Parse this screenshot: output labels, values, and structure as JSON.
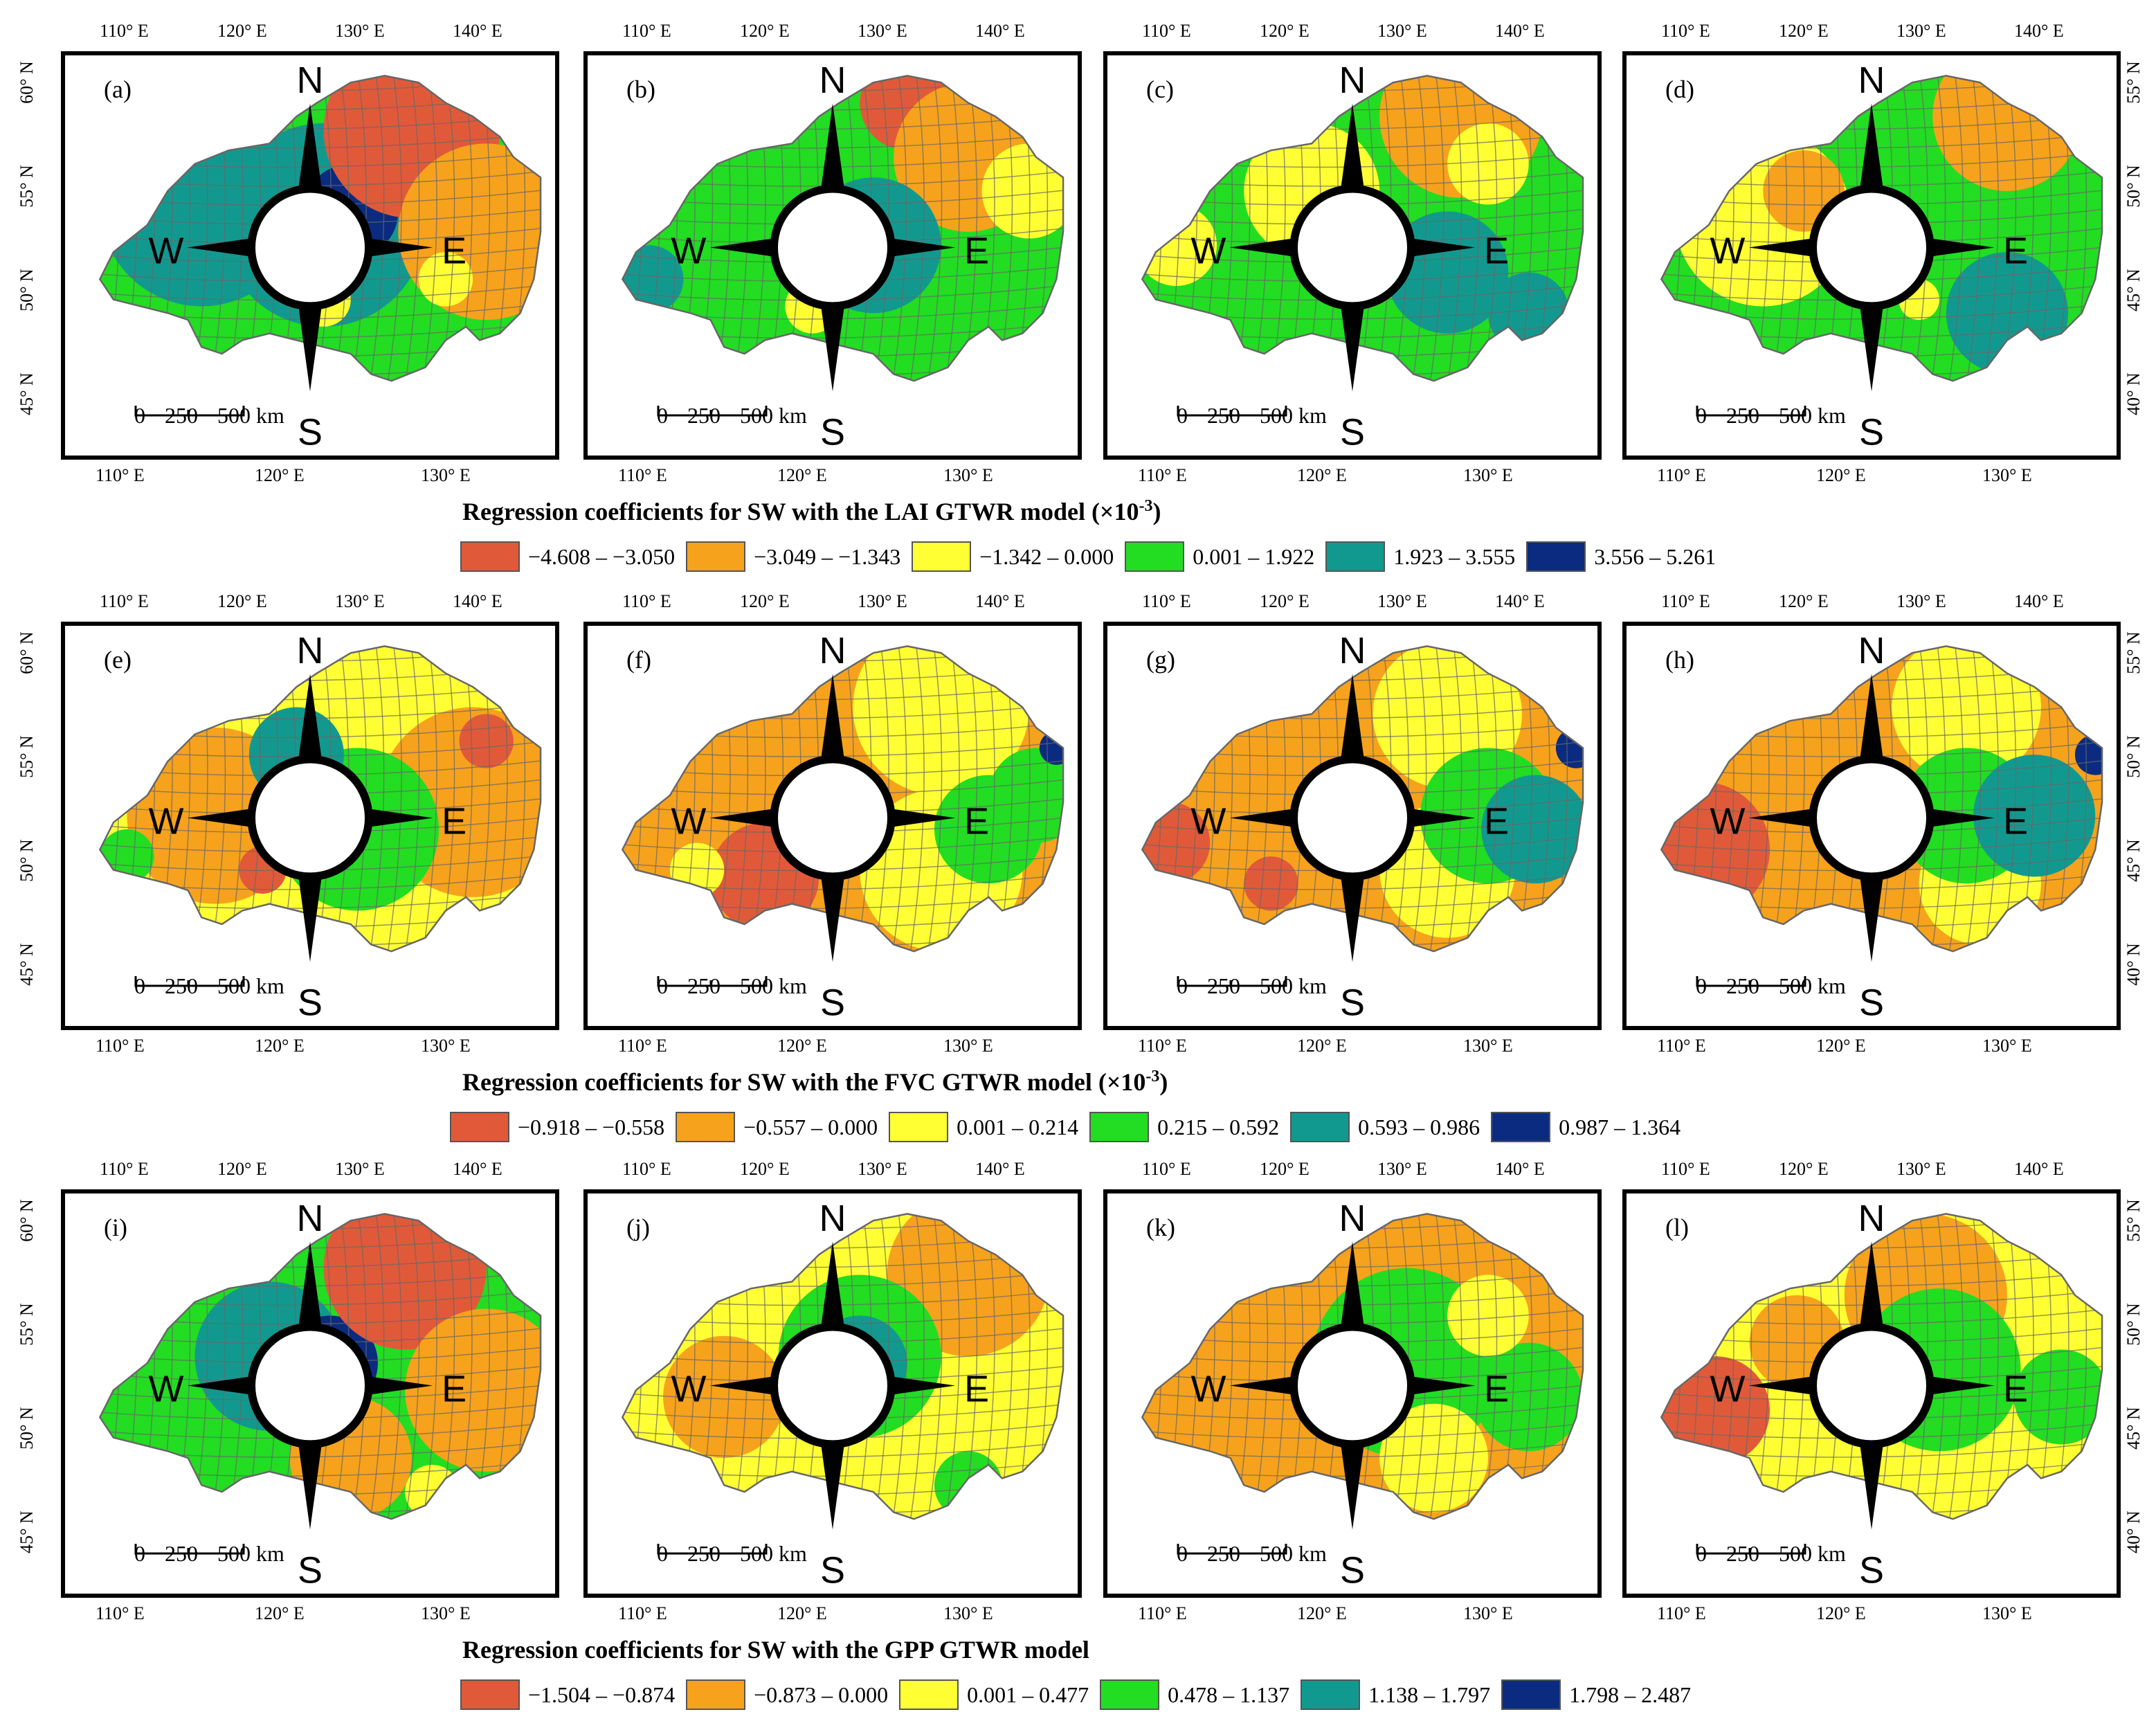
{
  "axes": {
    "lon_top": [
      "110° E",
      "120° E",
      "130° E",
      "140° E"
    ],
    "lon_bottom": [
      "110° E",
      "120° E",
      "130° E"
    ],
    "lat_left": [
      "60° N",
      "55° N",
      "50° N",
      "45° N"
    ],
    "lat_right": [
      "55° N",
      "50° N",
      "45° N",
      "40° N"
    ]
  },
  "compass": {
    "n": "N",
    "s": "S",
    "e": "E",
    "w": "W"
  },
  "scale": {
    "zero": "0",
    "mid": "250",
    "end": "500 km"
  },
  "rows": [
    {
      "title": "Regression coefficients for SW with the LAI GTWR model (×10",
      "title_sup": "-3",
      "title_close": ")",
      "panels": [
        "(a)",
        "(b)",
        "(c)",
        "(d)"
      ],
      "legend": [
        {
          "label": "−4.608 – −3.050",
          "color": "#e05a3a"
        },
        {
          "label": "−3.049 – −1.343",
          "color": "#f7a21c"
        },
        {
          "label": "−1.342 – 0.000",
          "color": "#ffff33"
        },
        {
          "label": "0.001 – 1.922",
          "color": "#22dd22"
        },
        {
          "label": "1.923 – 3.555",
          "color": "#12998f"
        },
        {
          "label": "3.556 – 5.261",
          "color": "#0a2b80"
        }
      ]
    },
    {
      "title": "Regression coefficients for SW with the FVC GTWR model (×10",
      "title_sup": "-3",
      "title_close": ")",
      "panels": [
        "(e)",
        "(f)",
        "(g)",
        "(h)"
      ],
      "legend": [
        {
          "label": "−0.918 – −0.558",
          "color": "#e05a3a"
        },
        {
          "label": "−0.557 – 0.000",
          "color": "#f7a21c"
        },
        {
          "label": "0.001 – 0.214",
          "color": "#ffff33"
        },
        {
          "label": "0.215 – 0.592",
          "color": "#22dd22"
        },
        {
          "label": "0.593 – 0.986",
          "color": "#12998f"
        },
        {
          "label": "0.987 – 1.364",
          "color": "#0a2b80"
        }
      ]
    },
    {
      "title": "Regression coefficients for SW with the GPP GTWR model",
      "title_sup": "",
      "title_close": "",
      "panels": [
        "(i)",
        "(j)",
        "(k)",
        "(l)"
      ],
      "legend": [
        {
          "label": "−1.504 – −0.874",
          "color": "#e05a3a"
        },
        {
          "label": "−0.873 – 0.000",
          "color": "#f7a21c"
        },
        {
          "label": "0.001 – 0.477",
          "color": "#ffff33"
        },
        {
          "label": "0.478 – 1.137",
          "color": "#22dd22"
        },
        {
          "label": "1.138 – 1.797",
          "color": "#12998f"
        },
        {
          "label": "1.798 – 2.487",
          "color": "#0a2b80"
        }
      ]
    }
  ],
  "colors": {
    "c1": "#e05a3a",
    "c2": "#f7a21c",
    "c3": "#ffff33",
    "c4": "#22dd22",
    "c5": "#12998f",
    "c6": "#0a2b80",
    "boundary": "#666666"
  }
}
